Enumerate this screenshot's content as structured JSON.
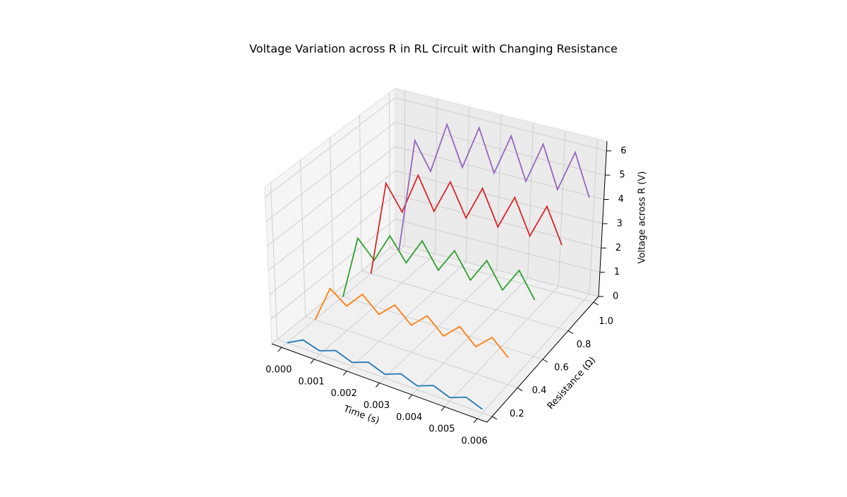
{
  "chart_data": {
    "type": "line3d",
    "title": "Voltage Variation across R in RL Circuit with Changing Resistance",
    "x_label": "Time (s)",
    "y_label": "Resistance (Ω)",
    "z_label": "Voltage across R (V)",
    "x": [
      0,
      0.0005,
      0.001,
      0.0015,
      0.002,
      0.0025,
      0.003,
      0.0035,
      0.004,
      0.0045,
      0.005,
      0.0055,
      0.006
    ],
    "series": [
      {
        "resistance": 0.2,
        "color": "#1f77b4",
        "values": [
          0,
          0.35,
          0.15,
          0.4,
          0.15,
          0.4,
          0.15,
          0.4,
          0.15,
          0.4,
          0.15,
          0.4,
          0.15
        ]
      },
      {
        "resistance": 0.4,
        "color": "#ff7f0e",
        "values": [
          0,
          1.5,
          1.0,
          1.7,
          1.1,
          1.7,
          1.1,
          1.7,
          1.1,
          1.7,
          1.1,
          1.7,
          1.1
        ]
      },
      {
        "resistance": 0.6,
        "color": "#2ca02c",
        "values": [
          0,
          2.6,
          1.9,
          3.1,
          2.2,
          3.3,
          2.3,
          3.3,
          2.3,
          3.3,
          2.3,
          3.3,
          2.3
        ]
      },
      {
        "resistance": 0.8,
        "color": "#d62728",
        "values": [
          0,
          3.9,
          2.9,
          4.6,
          3.3,
          4.7,
          3.4,
          4.8,
          3.4,
          4.8,
          3.4,
          4.8,
          3.4
        ]
      },
      {
        "resistance": 1.0,
        "color": "#9467bd",
        "values": [
          0,
          4.7,
          3.6,
          5.7,
          4.1,
          5.9,
          4.2,
          5.9,
          4.2,
          5.9,
          4.2,
          5.9,
          4.2
        ]
      }
    ],
    "xlim": [
      -0.0003,
      0.0063
    ],
    "xticks": [
      {
        "value": 0,
        "label": "0.000"
      },
      {
        "value": 0.001,
        "label": "0.001"
      },
      {
        "value": 0.002,
        "label": "0.002"
      },
      {
        "value": 0.003,
        "label": "0.003"
      },
      {
        "value": 0.004,
        "label": "0.004"
      },
      {
        "value": 0.005,
        "label": "0.005"
      },
      {
        "value": 0.006,
        "label": "0.006"
      }
    ],
    "ylim": [
      0.16,
      1.04
    ],
    "yticks": [
      0.2,
      0.4,
      0.6,
      0.8,
      {
        "value": 1.0,
        "label": "1.0"
      }
    ],
    "zlim": [
      0,
      6.4
    ],
    "zticks": [
      0,
      1,
      2,
      3,
      4,
      5,
      6
    ],
    "grid": true
  }
}
